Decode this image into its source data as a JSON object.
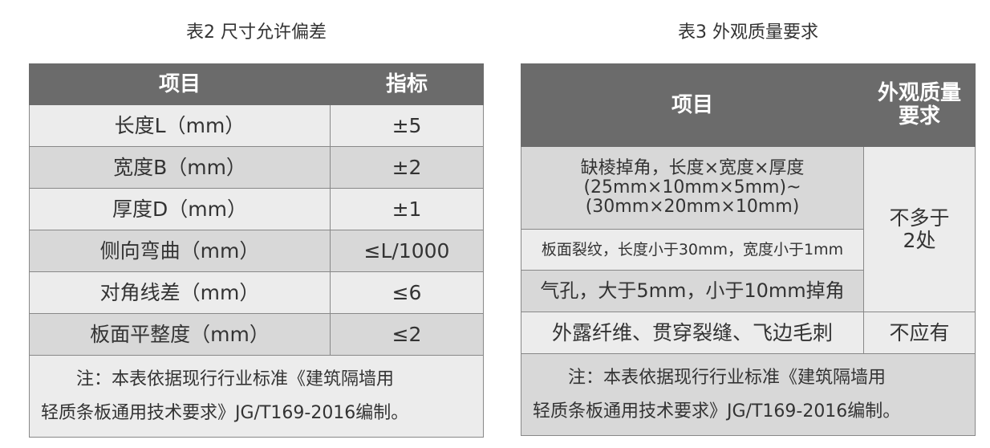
{
  "tables": [
    {
      "title": "表2  尺寸允许偏差",
      "header": [
        "项目",
        "指标"
      ],
      "rows": [
        [
          "长度L（mm）",
          "±5"
        ],
        [
          "宽度B（mm）",
          "±2"
        ],
        [
          "厚度D（mm）",
          "±1"
        ],
        [
          "侧向弯曲（mm）",
          "≤L/1000"
        ],
        [
          "对角线差（mm）",
          "≤6"
        ],
        [
          "板面平整度（mm）",
          "≤2"
        ]
      ],
      "note": "注：本表依据现行行业标准《建筑隔墙用\n轻质条板通用技术要求》JG/T169-2016编制。"
    },
    {
      "title": "表3  外观质量要求",
      "header": [
        "项目",
        "外观质量\n要求"
      ],
      "rows": [
        [
          "缺棱掉角，长度×宽度×厚度\n(25mm×10mm×5mm)~\n(30mm×20mm×10mm)",
          "不多于\n2处"
        ],
        [
          "板面裂纹，长度小于30mm，宽度小于1mm"
        ],
        [
          "气孔，大于5mm，小于10mm掉角"
        ],
        [
          "外露纤维、贯穿裂缝、飞边毛刺",
          "不应有"
        ]
      ],
      "note": "注：本表依据现行行业标准《建筑隔墙用\n轻质条板通用技术要求》JG/T169-2016编制。"
    }
  ]
}
